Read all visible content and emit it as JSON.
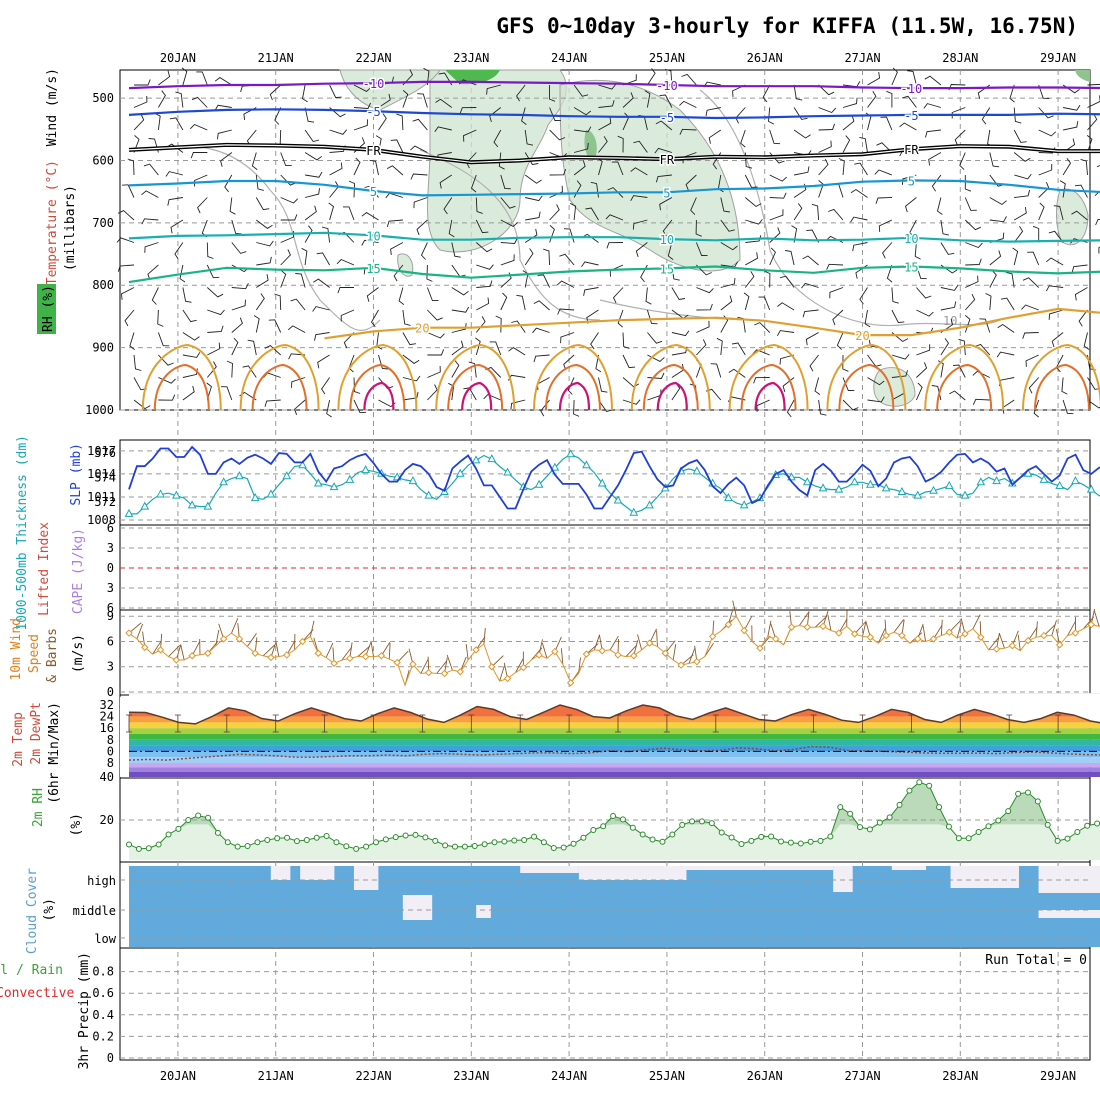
{
  "chart_data": {
    "type": "meteogram",
    "title": "GFS 0~10day 3-hourly for KIFFA (11.5W, 16.75N)",
    "dates": [
      "20JAN",
      "21JAN",
      "22JAN",
      "23JAN",
      "24JAN",
      "25JAN",
      "26JAN",
      "27JAN",
      "28JAN",
      "29JAN"
    ],
    "x_range_days": [
      0,
      10
    ],
    "panels": {
      "upper_air": {
        "ylabel": "(millibars)",
        "labels": [
          "Wind (m/s)",
          "Temperature (°C)",
          "RH (%)"
        ],
        "yticks": [
          500,
          600,
          700,
          800,
          900,
          1000
        ],
        "ylim": [
          455,
          1000
        ],
        "freezing_label": "FR",
        "contours": [
          {
            "label": "-10",
            "color": "#7a19c4",
            "x": [
              0,
              0.5,
              1,
              1.5,
              2,
              2.5,
              3,
              3.5,
              4,
              4.5,
              5,
              5.5,
              6,
              6.5,
              7,
              7.5,
              8,
              8.5,
              9,
              9.5,
              10
            ],
            "p": [
              484,
              481,
              479,
              479,
              477,
              476,
              474,
              474,
              475,
              476,
              477,
              479,
              481,
              481,
              481,
              483,
              484,
              484,
              483,
              483,
              484
            ]
          },
          {
            "label": "-5",
            "color": "#1e48d4",
            "x": [
              0,
              0.5,
              1,
              1.5,
              2,
              2.5,
              3,
              3.5,
              4,
              4.5,
              5,
              5.5,
              6,
              6.5,
              7,
              7.5,
              8,
              8.5,
              9,
              9.5,
              10
            ],
            "p": [
              527,
              522,
              519,
              518,
              519,
              521,
              524,
              526,
              527,
              529,
              530,
              530,
              532,
              531,
              529,
              528,
              527,
              527,
              527,
              525,
              526
            ]
          },
          {
            "label": "FR",
            "color": "#000000",
            "x": [
              0,
              0.5,
              1,
              1.5,
              2,
              2.5,
              3,
              3.5,
              4,
              4.5,
              5,
              5.5,
              6,
              6.5,
              7,
              7.5,
              8,
              8.5,
              9,
              9.5,
              10
            ],
            "p": [
              583,
              579,
              575,
              576,
              578,
              583,
              594,
              603,
              600,
              595,
              596,
              598,
              594,
              595,
              592,
              590,
              582,
              577,
              578,
              585,
              585
            ]
          },
          {
            "label": "5",
            "color": "#1796d6",
            "x": [
              0,
              0.5,
              1,
              1.5,
              2,
              2.5,
              3,
              3.5,
              4,
              4.5,
              5,
              5.5,
              6,
              6.5,
              7,
              7.5,
              8,
              8.5,
              9,
              9.5,
              10
            ],
            "p": [
              640,
              637,
              633,
              633,
              639,
              649,
              656,
              655,
              654,
              653,
              651,
              651,
              646,
              645,
              641,
              634,
              632,
              633,
              639,
              647,
              651
            ]
          },
          {
            "label": "10",
            "color": "#17b0b0",
            "x": [
              0,
              0.5,
              1,
              1.5,
              2,
              2.5,
              3,
              3.5,
              4,
              4.5,
              5,
              5.5,
              6,
              6.5,
              7,
              7.5,
              8,
              8.5,
              9,
              9.5,
              10
            ],
            "p": [
              725,
              721,
              720,
              718,
              716,
              720,
              727,
              727,
              724,
              723,
              723,
              726,
              728,
              725,
              728,
              727,
              724,
              728,
              730,
              729,
              728
            ]
          },
          {
            "label": "15",
            "color": "#18b486",
            "x": [
              0,
              0.5,
              1,
              1.5,
              2,
              2.5,
              3,
              3.5,
              4,
              4.5,
              5,
              5.5,
              6,
              6.5,
              7,
              7.5,
              8,
              8.5,
              9,
              9.5,
              10
            ],
            "p": [
              795,
              783,
              772,
              775,
              776,
              772,
              782,
              788,
              783,
              778,
              775,
              773,
              770,
              776,
              780,
              772,
              770,
              773,
              778,
              781,
              778
            ]
          }
        ],
        "contour_20": {
          "label": "20",
          "color": "#e0a030",
          "x": [
            2.0,
            2.5,
            3,
            3.5,
            4,
            4.5,
            5,
            5.5,
            6,
            6.5,
            7,
            7.5,
            8,
            8.5,
            9,
            9.5,
            10
          ],
          "p": [
            885,
            874,
            868,
            868,
            864,
            860,
            856,
            854,
            852,
            857,
            868,
            880,
            880,
            868,
            852,
            838,
            845
          ]
        },
        "rh_labels": [
          "10"
        ]
      },
      "thickness_slp": {
        "labels": [
          "1000-500mb Thickness (dm)",
          "SLP (mb)"
        ],
        "left_ticks": [
          572,
          574,
          576
        ],
        "right_ticks": [
          1008,
          1011,
          1014,
          1017
        ],
        "thickness_dm": [
          571.0,
          571.0,
          571.6,
          572.2,
          572.6,
          572.7,
          572.5,
          572.3,
          571.7,
          571.6,
          571.6,
          572.7,
          573.6,
          573.9,
          574.1,
          573.9,
          572.3,
          572.2,
          572.6,
          573.4,
          574.1,
          574.9,
          575.0,
          574.3,
          573.5,
          573.4,
          573.2,
          573.4,
          573.8,
          574.4,
          574.6,
          574.5,
          574.3,
          574.1,
          574.0,
          573.8,
          573.7,
          573.0,
          572.5,
          572.2,
          572.8,
          573.5,
          574.3,
          575.0,
          575.4,
          575.8,
          575.5,
          574.9,
          574.4,
          573.8,
          573.2,
          573.0,
          573.4,
          574.1,
          574.8,
          575.5,
          575.9,
          575.6,
          575.0,
          574.4,
          573.5,
          572.7,
          572.1,
          571.6,
          571.1,
          571.3,
          571.7,
          572.4,
          573.1,
          573.9,
          574.5,
          574.7,
          574.5,
          574.0,
          573.5,
          573.1,
          572.3,
          571.9,
          571.7,
          572.0,
          572.3,
          573.2,
          574.2,
          574.3,
          574.0,
          574.0,
          573.6,
          573.3,
          573.1,
          573.0,
          573.0,
          573.2,
          573.6,
          573.6,
          573.4,
          573.4,
          573.1,
          573.0,
          572.8,
          572.6,
          572.5,
          572.8,
          572.9,
          573.1,
          573.3,
          572.6,
          572.5,
          572.7,
          573.6,
          574.0,
          573.7,
          573.9,
          573.5,
          574.0,
          574.3,
          574.2,
          573.8,
          573.5,
          573.3,
          573.0,
          573.7,
          573.4,
          573.0,
          572.5,
          572.4
        ],
        "slp_mb": [
          1012.0,
          1015.0,
          1015.0,
          1016.0,
          1017.3,
          1017.3,
          1016.2,
          1016.2,
          1017.5,
          1016.5,
          1014.0,
          1014.0,
          1015.5,
          1016.0,
          1015.3,
          1016.1,
          1016.5,
          1016.0,
          1015.3,
          1016.7,
          1016.6,
          1015.5,
          1015.5,
          1016.6,
          1014.3,
          1013.0,
          1014.7,
          1015.0,
          1015.8,
          1016.3,
          1016.6,
          1015.4,
          1014.0,
          1013.0,
          1013.0,
          1014.5,
          1015.3,
          1015.0,
          1014.0,
          1012.3,
          1011.8,
          1014.7,
          1015.6,
          1016.4,
          1014.7,
          1012.5,
          1012.5,
          1011.0,
          1009.5,
          1009.5,
          1012.0,
          1014.3,
          1015.2,
          1015.8,
          1013.9,
          1012.7,
          1012.7,
          1012.7,
          1011.3,
          1009.5,
          1009.5,
          1011.0,
          1012.5,
          1014.5,
          1016.7,
          1016.9,
          1015.0,
          1013.3,
          1012.3,
          1012.5,
          1014.7,
          1015.4,
          1015.8,
          1014.5,
          1012.4,
          1011.5,
          1012.7,
          1013.5,
          1012.5,
          1010.2,
          1010.7,
          1012.5,
          1014.0,
          1014.5,
          1013.0,
          1011.9,
          1011.2,
          1014.5,
          1015.3,
          1014.4,
          1013.0,
          1013.0,
          1014.0,
          1015.2,
          1014.4,
          1012.4,
          1013.4,
          1015.5,
          1016.0,
          1016.2,
          1015.0,
          1013.0,
          1013.5,
          1014.3,
          1015.5,
          1016.5,
          1016.6,
          1015.5,
          1016.0,
          1015.4,
          1014.3,
          1014.7,
          1012.6,
          1013.5,
          1014.5,
          1015.0,
          1014.0,
          1013.0,
          1013.8,
          1016.0,
          1016.5,
          1014.5,
          1014.0,
          1014.8,
          1015.0
        ]
      },
      "cape_li": {
        "labels": [
          "Lifted Index",
          "CAPE (J/kg)"
        ],
        "yticks": [
          6,
          3,
          0,
          -3,
          -6
        ],
        "tick_labels": [
          "6",
          "3",
          "0",
          "3",
          "6"
        ],
        "lifted_index": 0.0,
        "cape": 0
      },
      "wind_10m": {
        "labels": [
          "10m Wind",
          "Speed",
          "& Barbs",
          "(m/s)"
        ],
        "yticks": [
          0,
          3,
          6,
          9
        ],
        "ylim": [
          0,
          9.5
        ],
        "speed_ms": [
          7.0,
          6.3,
          5.3,
          4.5,
          5.0,
          4.2,
          3.8,
          3.8,
          4.3,
          4.4,
          4.6,
          5.5,
          6.3,
          7.0,
          6.3,
          5.4,
          4.6,
          4.3,
          4.1,
          4.2,
          4.4,
          5.0,
          6.0,
          6.6,
          4.6,
          4.1,
          3.4,
          3.8,
          4.0,
          4.2,
          4.2,
          4.2,
          4.3,
          3.9,
          3.5,
          0.8,
          3.3,
          2.2,
          2.3,
          2.2,
          2.2,
          2.6,
          2.4,
          3.8,
          5.0,
          5.7,
          3.0,
          1.3,
          1.6,
          2.3,
          2.9,
          3.8,
          4.4,
          4.0,
          4.8,
          3.3,
          1.1,
          2.2,
          4.5,
          5.0,
          4.9,
          5.0,
          4.4,
          4.2,
          4.3,
          5.0,
          5.8,
          5.4,
          4.6,
          3.8,
          3.2,
          3.4,
          3.6,
          4.2,
          6.6,
          7.2,
          8.0,
          9.0,
          7.3,
          6.0,
          5.2,
          6.6,
          6.3,
          5.6,
          7.7,
          7.9,
          7.7,
          7.7,
          7.8,
          7.3,
          7.0,
          7.8,
          6.9,
          6.6,
          6.5,
          5.8,
          6.7,
          7.1,
          6.7,
          5.8,
          6.3,
          6.0,
          6.3,
          6.7,
          7.1,
          6.4,
          6.9,
          7.5,
          6.5,
          5.0,
          5.1,
          5.2,
          5.5,
          4.9,
          6.1,
          6.5,
          6.7,
          6.7,
          5.6,
          6.7,
          7.0,
          7.5,
          8.0,
          7.8,
          8.2
        ]
      },
      "temp_2m": {
        "labels": [
          "2m Temp",
          "2m DewPt",
          "(6hr Min/Max)"
        ],
        "yticks": [
          32,
          24,
          16,
          8,
          0,
          -8,
          -40
        ],
        "tick_labels": [
          "32",
          "24",
          "16",
          "8",
          "0",
          "8",
          "40"
        ],
        "temp_c": [
          27,
          26.8,
          23.6,
          20,
          19,
          24,
          30,
          28,
          22.7,
          21,
          26,
          30,
          26.5,
          22.6,
          21,
          26,
          30,
          26.8,
          22.3,
          20,
          25,
          31,
          29,
          24,
          22,
          27,
          32,
          29,
          24,
          23,
          28,
          32,
          30,
          24.5,
          22,
          26.5,
          30,
          26,
          22,
          21,
          25.5,
          29,
          25.5,
          21.5,
          20,
          24,
          29,
          27,
          22,
          20,
          25,
          29,
          26,
          22,
          20,
          22.6,
          27,
          25,
          21,
          19
        ],
        "dewpt_c": [
          -6,
          -5.5,
          -6,
          -5,
          -4,
          -3,
          -2,
          -2.5,
          -3,
          -4,
          -4,
          -3.5,
          -3,
          -3,
          -2.5,
          -3,
          -2,
          -1.5,
          -2,
          -2.5,
          -2,
          -1.5,
          -1,
          -1,
          -1.5,
          -1,
          0.5,
          -0.2,
          1.2,
          2.2,
          1,
          0.4,
          0.7,
          2.5,
          1.8,
          0.4,
          1.3,
          3.3,
          2.8,
          0.5,
          0.3,
          0,
          -0.5,
          -1,
          -1.3,
          -1.3,
          -1.2,
          -1.5,
          -0.8,
          -0.4,
          -1.1,
          -1.8,
          -2.3,
          -2.5
        ]
      },
      "rh_2m": {
        "labels": [
          "2m RH",
          "(%)"
        ],
        "yticks": [
          20
        ],
        "ylim": [
          2,
          38
        ],
        "rh_percent": [
          9,
          7,
          7.3,
          9,
          13.5,
          16,
          20,
          22,
          21,
          14.2,
          10,
          8,
          8.3,
          10,
          11,
          11.8,
          12,
          10.5,
          11,
          12,
          12.8,
          10,
          8.2,
          7,
          8,
          10,
          11.3,
          12.3,
          13,
          13.3,
          12.2,
          10.6,
          8.6,
          8,
          8,
          8.3,
          9.1,
          10,
          10.3,
          10.8,
          11,
          12.5,
          10,
          7.4,
          7.6,
          9.3,
          12,
          15.5,
          17.2,
          21.8,
          20.3,
          16.5,
          13.5,
          11.2,
          10.2,
          13.5,
          17.8,
          19.4,
          19.4,
          18.6,
          14.4,
          12.1,
          9.2,
          10.6,
          12.4,
          12.6,
          10.3,
          9.8,
          9.4,
          10.2,
          10.6,
          12.6,
          25.8,
          22.8,
          16.8,
          15.8,
          18.8,
          21.2,
          26.8,
          33.2,
          37,
          35.4,
          25.8,
          17,
          11.8,
          11.8,
          14.6,
          17.2,
          19.8,
          24,
          31.8,
          32.4,
          28.4,
          17.8,
          10.6,
          11.6,
          14.6,
          17.4,
          18.4,
          18.8
        ]
      },
      "cloud_cover": {
        "labels": [
          "Cloud Cover",
          "(%)"
        ],
        "levels": [
          "high",
          "middle",
          "low"
        ]
      },
      "precip": {
        "labels": [
          "Total / Rain",
          "Convective",
          "3hr Precip (mm)"
        ],
        "yticks": [
          0,
          0.2,
          0.4,
          0.6,
          0.8
        ],
        "ylim": [
          0,
          1.0
        ],
        "run_total_label": "Run Total = 0",
        "values_mm": [
          0,
          0,
          0,
          0,
          0,
          0,
          0,
          0,
          0,
          0,
          0,
          0,
          0,
          0,
          0,
          0,
          0,
          0,
          0,
          0,
          0,
          0,
          0,
          0,
          0,
          0,
          0,
          0,
          0,
          0,
          0,
          0,
          0,
          0,
          0,
          0,
          0,
          0,
          0,
          0,
          0,
          0,
          0,
          0,
          0,
          0,
          0,
          0,
          0,
          0,
          0,
          0,
          0,
          0,
          0,
          0,
          0,
          0,
          0,
          0,
          0,
          0,
          0,
          0,
          0,
          0,
          0,
          0,
          0,
          0,
          0,
          0,
          0,
          0,
          0,
          0,
          0,
          0,
          0,
          0
        ]
      }
    }
  }
}
